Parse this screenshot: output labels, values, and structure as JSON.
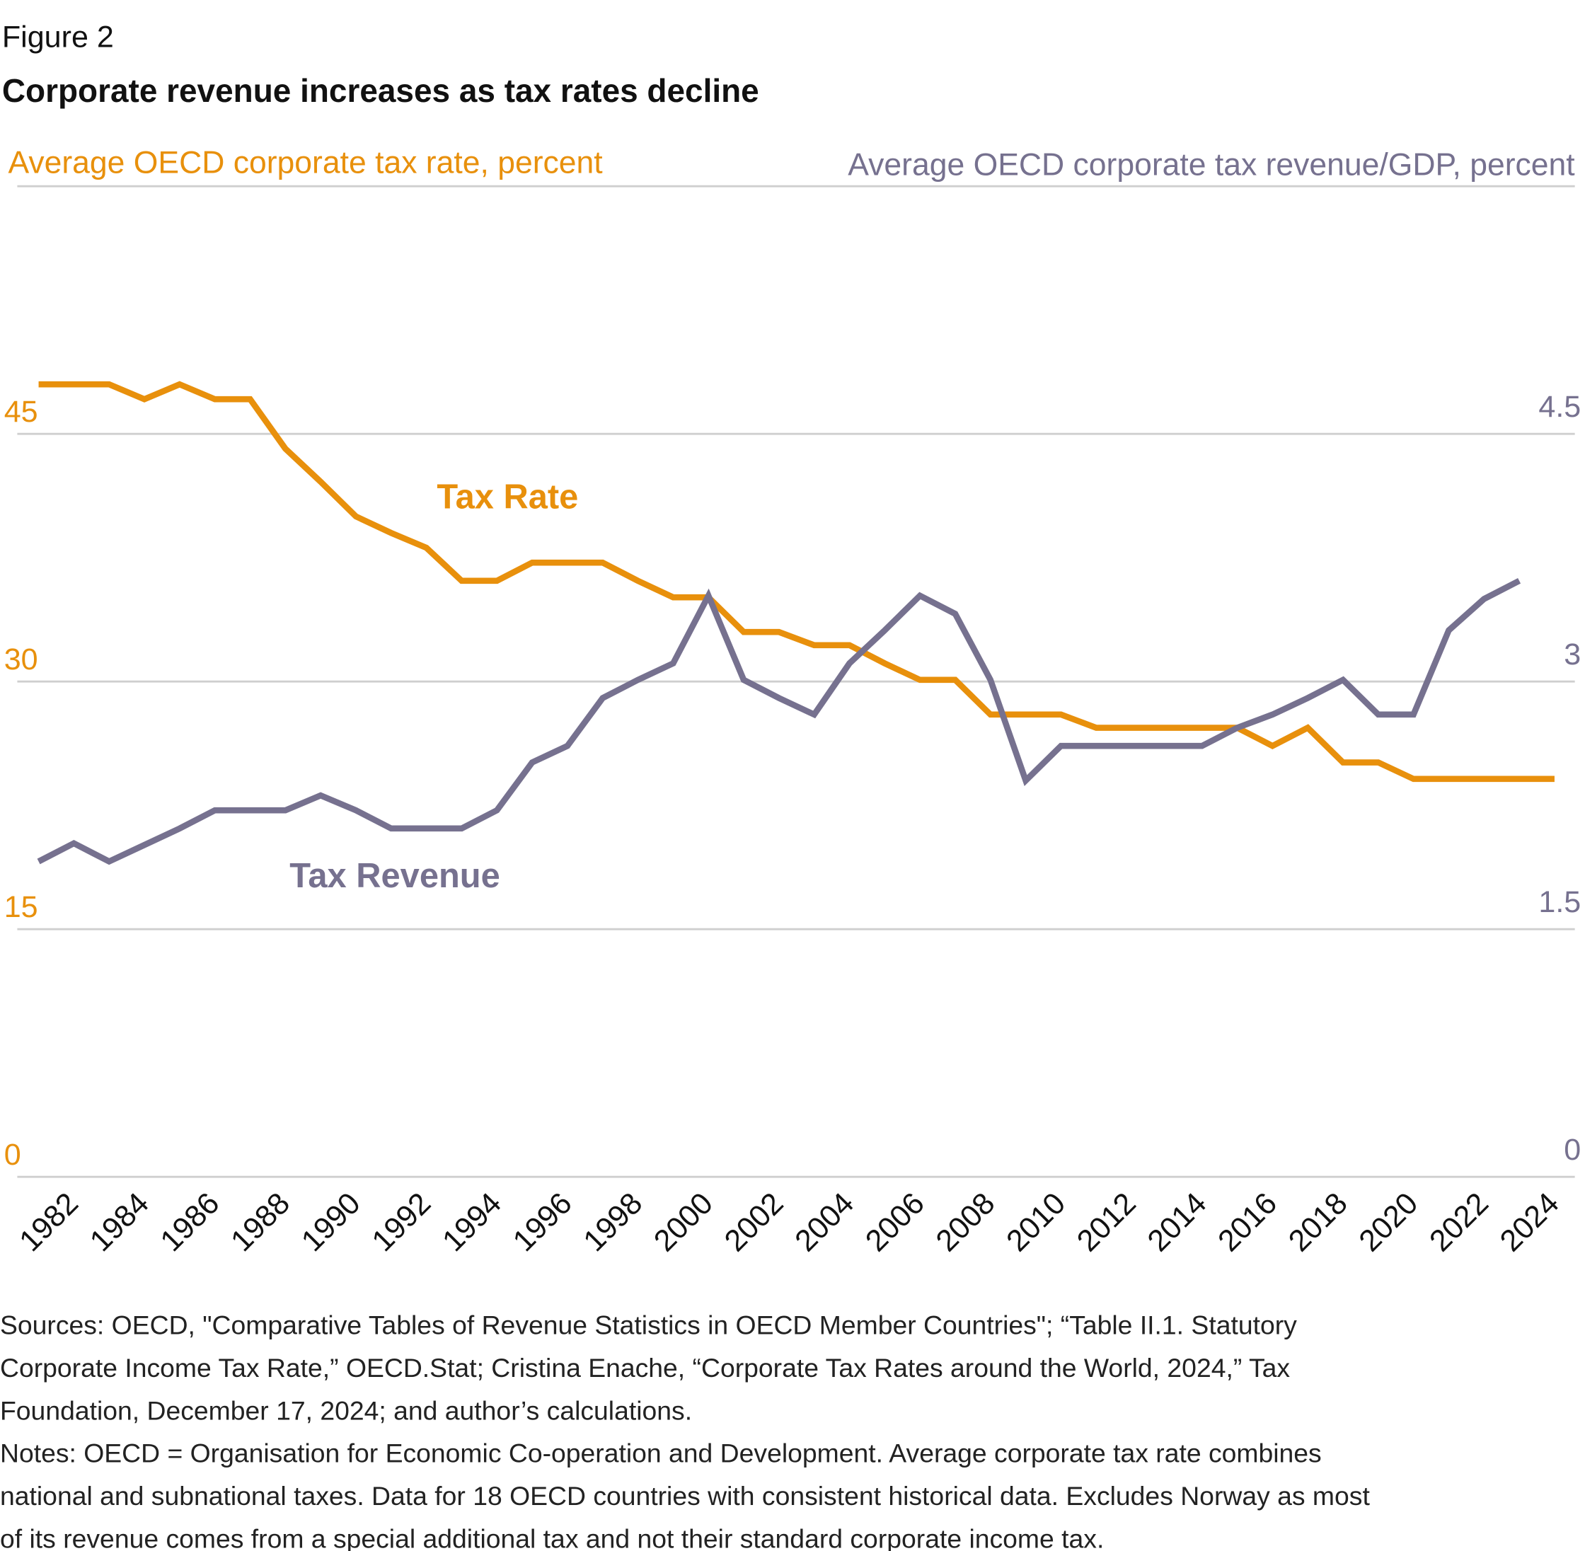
{
  "chart_data": {
    "type": "line",
    "figure_label": "Figure 2",
    "title": "Corporate revenue increases as tax rates decline",
    "y_label": "Average OECD corporate tax rate, percent",
    "y2_label": "Average OECD corporate tax revenue/GDP, percent",
    "x": [
      1981,
      1982,
      1983,
      1984,
      1985,
      1986,
      1987,
      1988,
      1989,
      1990,
      1991,
      1992,
      1993,
      1994,
      1995,
      1996,
      1997,
      1998,
      1999,
      2000,
      2001,
      2002,
      2003,
      2004,
      2005,
      2006,
      2007,
      2008,
      2009,
      2010,
      2011,
      2012,
      2013,
      2014,
      2015,
      2016,
      2017,
      2018,
      2019,
      2020,
      2021,
      2022,
      2023,
      2024
    ],
    "xlim": [
      1981,
      2024
    ],
    "xticks": [
      1982,
      1984,
      1986,
      1988,
      1990,
      1992,
      1994,
      1996,
      1998,
      2000,
      2002,
      2004,
      2006,
      2008,
      2010,
      2012,
      2014,
      2016,
      2018,
      2020,
      2022,
      2024
    ],
    "ylim": [
      0,
      60
    ],
    "yticks": [
      0,
      15,
      30,
      45
    ],
    "y2lim": [
      0,
      6
    ],
    "y2ticks": [
      0,
      1.5,
      3,
      4.5
    ],
    "grid": true,
    "series": [
      {
        "name": "Tax Rate",
        "color": "#e8900c",
        "axis": "y",
        "values": [
          48,
          48,
          48,
          47.1,
          48,
          47.1,
          47.1,
          44.1,
          42.1,
          40,
          39,
          38.1,
          36.1,
          36.1,
          37.2,
          37.2,
          37.2,
          36.1,
          35.1,
          35.1,
          33,
          33,
          32.2,
          32.2,
          31.1,
          30.1,
          30.1,
          28,
          28,
          28,
          27.2,
          27.2,
          27.2,
          27.2,
          27.2,
          26.1,
          27.2,
          25.1,
          25.1,
          24.1,
          24.1,
          24.1,
          24.1,
          24.1
        ]
      },
      {
        "name": "Tax Revenue",
        "color": "#76718f",
        "axis": "y2",
        "values": [
          1.91,
          2.02,
          1.91,
          2.01,
          2.11,
          2.22,
          2.22,
          2.22,
          2.31,
          2.22,
          2.11,
          2.11,
          2.11,
          2.22,
          2.51,
          2.61,
          2.9,
          3.01,
          3.11,
          3.52,
          3.01,
          2.9,
          2.8,
          3.11,
          3.31,
          3.52,
          3.41,
          3.01,
          2.4,
          2.61,
          2.61,
          2.61,
          2.61,
          2.61,
          2.72,
          2.8,
          2.9,
          3.01,
          2.8,
          2.8,
          3.31,
          3.5,
          3.61,
          null
        ]
      }
    ],
    "sources": [
      "Sources: OECD, \"Comparative Tables of Revenue Statistics in OECD Member Countries\"; “Table II.1. Statutory",
      "Corporate Income Tax Rate,” OECD.Stat; Cristina Enache, “Corporate Tax Rates around the World, 2024,” Tax",
      "Foundation, December 17, 2024; and author’s calculations."
    ],
    "notes": [
      "Notes: OECD = Organisation for Economic Co-operation and Development. Average corporate tax rate combines",
      "national and subnational taxes. Data for 18 OECD countries with consistent historical data. Excludes Norway as most",
      "of its revenue comes from a special additional tax and not their standard corporate income tax."
    ]
  }
}
